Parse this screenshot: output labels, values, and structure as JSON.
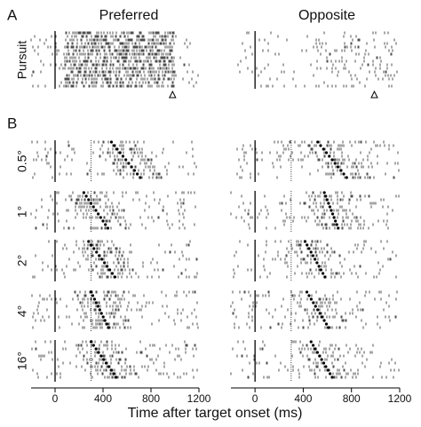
{
  "chart_data": {
    "type": "raster",
    "panel_labels": [
      "A",
      "B"
    ],
    "columns": [
      "Preferred",
      "Opposite"
    ],
    "rows": [
      {
        "label": "Pursuit",
        "preferred_onsets": null,
        "opposite_onsets": null
      },
      {
        "label": "0.5°",
        "preferred_onsets": [
          470,
          710
        ],
        "opposite_onsets": [
          520,
          760
        ]
      },
      {
        "label": "1°",
        "preferred_onsets": [
          240,
          440
        ],
        "opposite_onsets": [
          575,
          690
        ]
      },
      {
        "label": "2°",
        "preferred_onsets": [
          280,
          500
        ],
        "opposite_onsets": [
          415,
          580
        ]
      },
      {
        "label": "4°",
        "preferred_onsets": [
          300,
          445
        ],
        "opposite_onsets": [
          430,
          610
        ]
      },
      {
        "label": "16°",
        "preferred_onsets": [
          300,
          510
        ],
        "opposite_onsets": [
          465,
          640
        ]
      }
    ],
    "pursuit_markers": [
      980,
      990
    ],
    "event_lines": [
      0,
      300
    ],
    "x_label": "Time after target onset (ms)",
    "xlim": [
      -200,
      1200
    ],
    "xticks": [
      0,
      400,
      800,
      1200
    ]
  }
}
